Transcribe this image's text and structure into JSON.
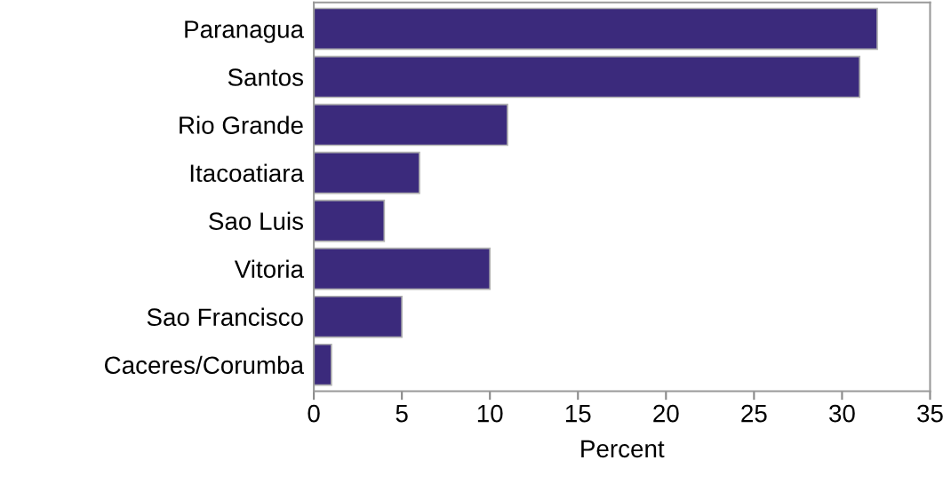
{
  "chart_data": {
    "type": "bar",
    "orientation": "horizontal",
    "xlabel": "Percent",
    "categories": [
      "Paranagua",
      "Santos",
      "Rio Grande",
      "Itacoatiara",
      "Sao Luis",
      "Vitoria",
      "Sao Francisco",
      "Caceres/Corumba"
    ],
    "values": [
      32,
      31,
      11,
      6,
      4,
      10,
      5,
      1
    ],
    "color": "#3b2a7c",
    "xlim": [
      0,
      35
    ],
    "xticks": [
      0,
      5,
      10,
      15,
      20,
      25,
      30,
      35
    ],
    "grid": false,
    "legend": false
  }
}
